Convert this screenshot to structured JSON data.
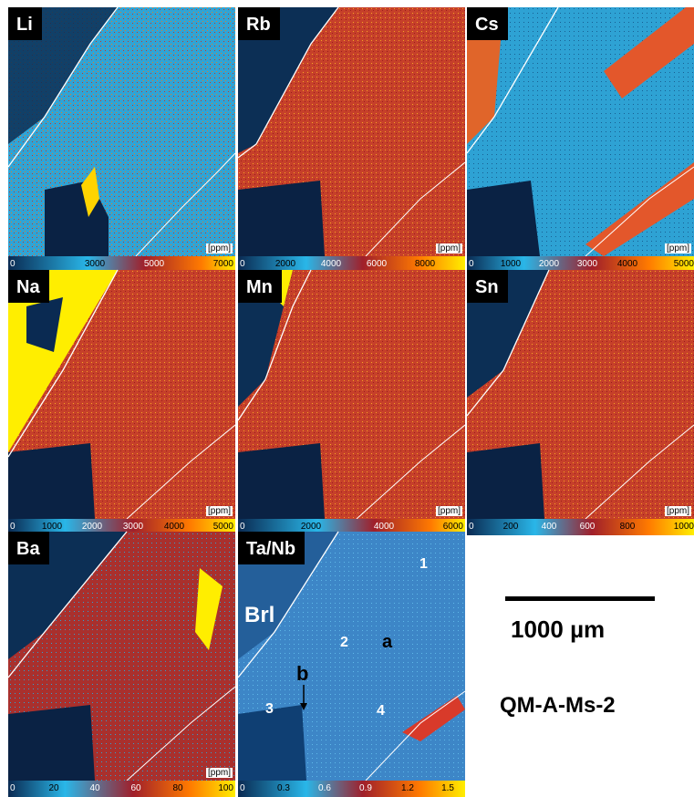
{
  "unit": "[ppm]",
  "panels": [
    {
      "label": "Li",
      "ticks": [
        "0",
        "3000",
        "5000",
        "7000"
      ]
    },
    {
      "label": "Rb",
      "ticks": [
        "0",
        "2000",
        "4000",
        "6000",
        "8000"
      ]
    },
    {
      "label": "Cs",
      "ticks": [
        "0",
        "1000",
        "2000",
        "3000",
        "4000",
        "5000"
      ]
    },
    {
      "label": "Na",
      "ticks": [
        "0",
        "1000",
        "2000",
        "3000",
        "4000",
        "5000"
      ]
    },
    {
      "label": "Mn",
      "ticks": [
        "0",
        "2000",
        "4000",
        "6000"
      ]
    },
    {
      "label": "Sn",
      "ticks": [
        "0",
        "200",
        "400",
        "600",
        "800",
        "1000"
      ]
    },
    {
      "label": "Ba",
      "ticks": [
        "0",
        "20",
        "40",
        "60",
        "80",
        "100"
      ]
    },
    {
      "label": "Ta/Nb",
      "ticks": [
        "0",
        "0.3",
        "0.6",
        "0.9",
        "1.2",
        "1.5"
      ]
    }
  ],
  "annotations": {
    "brl": "Brl",
    "z1": "1",
    "z2": "2",
    "z3": "3",
    "z4": "4",
    "a": "a",
    "b": "b"
  },
  "scale_bar": "1000 µm",
  "sample_name": "QM-A-Ms-2",
  "colors": {
    "background": "#0a2a52",
    "low": "#29b6e8",
    "mid": "#b81d1d",
    "high": "#ffee00"
  }
}
